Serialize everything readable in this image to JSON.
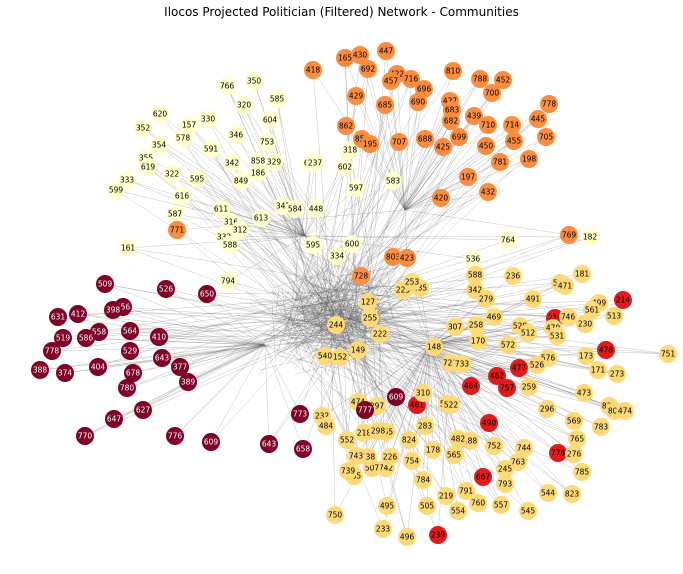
{
  "title": "Ilocos Projected Politician (Filtered) Network - Communities",
  "colors": {
    "edge": "#555555",
    "community_yellow_pale": "#ffffcc",
    "community_gold": "#fed976",
    "community_orange": "#fd8d3c",
    "community_red": "#e31a1c",
    "community_maroon": "#800026"
  },
  "nodes": [
    {
      "label": "766",
      "c": "community_yellow_pale"
    },
    {
      "label": "350",
      "c": "community_yellow_pale"
    },
    {
      "label": "585",
      "c": "community_yellow_pale"
    },
    {
      "label": "320",
      "c": "community_yellow_pale"
    },
    {
      "label": "604",
      "c": "community_yellow_pale"
    },
    {
      "label": "620",
      "c": "community_yellow_pale"
    },
    {
      "label": "157",
      "c": "community_yellow_pale"
    },
    {
      "label": "330",
      "c": "community_yellow_pale"
    },
    {
      "label": "352",
      "c": "community_yellow_pale"
    },
    {
      "label": "578",
      "c": "community_yellow_pale"
    },
    {
      "label": "346",
      "c": "community_yellow_pale"
    },
    {
      "label": "354",
      "c": "community_yellow_pale"
    },
    {
      "label": "591",
      "c": "community_yellow_pale"
    },
    {
      "label": "753",
      "c": "community_yellow_pale"
    },
    {
      "label": "355",
      "c": "community_yellow_pale"
    },
    {
      "label": "619",
      "c": "community_yellow_pale"
    },
    {
      "label": "342",
      "c": "community_yellow_pale"
    },
    {
      "label": "858",
      "c": "community_yellow_pale"
    },
    {
      "label": "329",
      "c": "community_yellow_pale"
    },
    {
      "label": "603",
      "c": "community_yellow_pale"
    },
    {
      "label": "237",
      "c": "community_yellow_pale"
    },
    {
      "label": "322",
      "c": "community_yellow_pale"
    },
    {
      "label": "186",
      "c": "community_yellow_pale"
    },
    {
      "label": "333",
      "c": "community_yellow_pale"
    },
    {
      "label": "595",
      "c": "community_yellow_pale"
    },
    {
      "label": "849",
      "c": "community_yellow_pale"
    },
    {
      "label": "599",
      "c": "community_yellow_pale"
    },
    {
      "label": "602",
      "c": "community_yellow_pale"
    },
    {
      "label": "318",
      "c": "community_yellow_pale"
    },
    {
      "label": "616",
      "c": "community_yellow_pale"
    },
    {
      "label": "611",
      "c": "community_yellow_pale"
    },
    {
      "label": "587",
      "c": "community_yellow_pale"
    },
    {
      "label": "316",
      "c": "community_yellow_pale"
    },
    {
      "label": "613",
      "c": "community_yellow_pale"
    },
    {
      "label": "312",
      "c": "community_yellow_pale"
    },
    {
      "label": "332",
      "c": "community_yellow_pale"
    },
    {
      "label": "161",
      "c": "community_yellow_pale"
    },
    {
      "label": "588",
      "c": "community_yellow_pale"
    },
    {
      "label": "764",
      "c": "community_yellow_pale"
    },
    {
      "label": "182",
      "c": "community_yellow_pale"
    },
    {
      "label": "794",
      "c": "community_yellow_pale"
    },
    {
      "label": "341",
      "c": "community_yellow_pale"
    },
    {
      "label": "584",
      "c": "community_yellow_pale"
    },
    {
      "label": "448",
      "c": "community_yellow_pale"
    },
    {
      "label": "595",
      "c": "community_yellow_pale"
    },
    {
      "label": "334",
      "c": "community_yellow_pale"
    },
    {
      "label": "600",
      "c": "community_yellow_pale"
    },
    {
      "label": "597",
      "c": "community_yellow_pale"
    },
    {
      "label": "583",
      "c": "community_yellow_pale"
    },
    {
      "label": "536",
      "c": "community_yellow_pale"
    },
    {
      "label": "418",
      "c": "community_orange"
    },
    {
      "label": "165",
      "c": "community_orange"
    },
    {
      "label": "430",
      "c": "community_orange"
    },
    {
      "label": "447",
      "c": "community_orange"
    },
    {
      "label": "692",
      "c": "community_orange"
    },
    {
      "label": "422",
      "c": "community_orange"
    },
    {
      "label": "457",
      "c": "community_orange"
    },
    {
      "label": "716",
      "c": "community_orange"
    },
    {
      "label": "696",
      "c": "community_orange"
    },
    {
      "label": "810",
      "c": "community_orange"
    },
    {
      "label": "788",
      "c": "community_orange"
    },
    {
      "label": "452",
      "c": "community_orange"
    },
    {
      "label": "429",
      "c": "community_orange"
    },
    {
      "label": "685",
      "c": "community_orange"
    },
    {
      "label": "690",
      "c": "community_orange"
    },
    {
      "label": "427",
      "c": "community_orange"
    },
    {
      "label": "683",
      "c": "community_orange"
    },
    {
      "label": "700",
      "c": "community_orange"
    },
    {
      "label": "778",
      "c": "community_orange"
    },
    {
      "label": "439",
      "c": "community_orange"
    },
    {
      "label": "682",
      "c": "community_orange"
    },
    {
      "label": "710",
      "c": "community_orange"
    },
    {
      "label": "445",
      "c": "community_orange"
    },
    {
      "label": "862",
      "c": "community_orange"
    },
    {
      "label": "714",
      "c": "community_orange"
    },
    {
      "label": "705",
      "c": "community_orange"
    },
    {
      "label": "854",
      "c": "community_orange"
    },
    {
      "label": "195",
      "c": "community_orange"
    },
    {
      "label": "707",
      "c": "community_orange"
    },
    {
      "label": "688",
      "c": "community_orange"
    },
    {
      "label": "425",
      "c": "community_orange"
    },
    {
      "label": "699",
      "c": "community_orange"
    },
    {
      "label": "450",
      "c": "community_orange"
    },
    {
      "label": "455",
      "c": "community_orange"
    },
    {
      "label": "781",
      "c": "community_orange"
    },
    {
      "label": "198",
      "c": "community_orange"
    },
    {
      "label": "197",
      "c": "community_orange"
    },
    {
      "label": "432",
      "c": "community_orange"
    },
    {
      "label": "420",
      "c": "community_orange"
    },
    {
      "label": "771",
      "c": "community_orange"
    },
    {
      "label": "769",
      "c": "community_orange"
    },
    {
      "label": "728",
      "c": "community_orange"
    },
    {
      "label": "803",
      "c": "community_orange"
    },
    {
      "label": "423",
      "c": "community_orange"
    },
    {
      "label": "214",
      "c": "community_red"
    },
    {
      "label": "478",
      "c": "community_red"
    },
    {
      "label": "477",
      "c": "community_red"
    },
    {
      "label": "213",
      "c": "community_red"
    },
    {
      "label": "464",
      "c": "community_red"
    },
    {
      "label": "667",
      "c": "community_red"
    },
    {
      "label": "239",
      "c": "community_red"
    },
    {
      "label": "461",
      "c": "community_red"
    },
    {
      "label": "490",
      "c": "community_red"
    },
    {
      "label": "776",
      "c": "community_red"
    },
    {
      "label": "462",
      "c": "community_red"
    },
    {
      "label": "757",
      "c": "community_red"
    },
    {
      "label": "181",
      "c": "community_gold"
    },
    {
      "label": "236",
      "c": "community_gold"
    },
    {
      "label": "563",
      "c": "community_gold"
    },
    {
      "label": "471",
      "c": "community_gold"
    },
    {
      "label": "499",
      "c": "community_gold"
    },
    {
      "label": "561",
      "c": "community_gold"
    },
    {
      "label": "513",
      "c": "community_gold"
    },
    {
      "label": "746",
      "c": "community_gold"
    },
    {
      "label": "470",
      "c": "community_gold"
    },
    {
      "label": "230",
      "c": "community_gold"
    },
    {
      "label": "531",
      "c": "community_gold"
    },
    {
      "label": "751",
      "c": "community_gold"
    },
    {
      "label": "173",
      "c": "community_gold"
    },
    {
      "label": "171",
      "c": "community_gold"
    },
    {
      "label": "273",
      "c": "community_gold"
    },
    {
      "label": "576",
      "c": "community_gold"
    },
    {
      "label": "526",
      "c": "community_gold"
    },
    {
      "label": "520",
      "c": "community_gold"
    },
    {
      "label": "512",
      "c": "community_gold"
    },
    {
      "label": "491",
      "c": "community_gold"
    },
    {
      "label": "473",
      "c": "community_gold"
    },
    {
      "label": "820",
      "c": "community_gold"
    },
    {
      "label": "803",
      "c": "community_gold"
    },
    {
      "label": "474",
      "c": "community_gold"
    },
    {
      "label": "569",
      "c": "community_gold"
    },
    {
      "label": "783",
      "c": "community_gold"
    },
    {
      "label": "765",
      "c": "community_gold"
    },
    {
      "label": "276",
      "c": "community_gold"
    },
    {
      "label": "785",
      "c": "community_gold"
    },
    {
      "label": "823",
      "c": "community_gold"
    },
    {
      "label": "544",
      "c": "community_gold"
    },
    {
      "label": "545",
      "c": "community_gold"
    },
    {
      "label": "557",
      "c": "community_gold"
    },
    {
      "label": "760",
      "c": "community_gold"
    },
    {
      "label": "793",
      "c": "community_gold"
    },
    {
      "label": "763",
      "c": "community_gold"
    },
    {
      "label": "245",
      "c": "community_gold"
    },
    {
      "label": "744",
      "c": "community_gold"
    },
    {
      "label": "752",
      "c": "community_gold"
    },
    {
      "label": "488",
      "c": "community_gold"
    },
    {
      "label": "296",
      "c": "community_gold"
    },
    {
      "label": "259",
      "c": "community_gold"
    },
    {
      "label": "791",
      "c": "community_gold"
    },
    {
      "label": "554",
      "c": "community_gold"
    },
    {
      "label": "219",
      "c": "community_gold"
    },
    {
      "label": "505",
      "c": "community_gold"
    },
    {
      "label": "495",
      "c": "community_gold"
    },
    {
      "label": "496",
      "c": "community_gold"
    },
    {
      "label": "233",
      "c": "community_gold"
    },
    {
      "label": "750",
      "c": "community_gold"
    },
    {
      "label": "285",
      "c": "community_gold"
    },
    {
      "label": "739",
      "c": "community_gold"
    },
    {
      "label": "742",
      "c": "community_gold"
    },
    {
      "label": "507",
      "c": "community_gold"
    },
    {
      "label": "784",
      "c": "community_gold"
    },
    {
      "label": "754",
      "c": "community_gold"
    },
    {
      "label": "178",
      "c": "community_gold"
    },
    {
      "label": "565",
      "c": "community_gold"
    },
    {
      "label": "482",
      "c": "community_gold"
    },
    {
      "label": "533",
      "c": "community_gold"
    },
    {
      "label": "522",
      "c": "community_gold"
    },
    {
      "label": "310",
      "c": "community_gold"
    },
    {
      "label": "824",
      "c": "community_gold"
    },
    {
      "label": "155",
      "c": "community_gold"
    },
    {
      "label": "283",
      "c": "community_gold"
    },
    {
      "label": "552",
      "c": "community_gold"
    },
    {
      "label": "232",
      "c": "community_gold"
    },
    {
      "label": "484",
      "c": "community_gold"
    },
    {
      "label": "218",
      "c": "community_gold"
    },
    {
      "label": "298",
      "c": "community_gold"
    },
    {
      "label": "738",
      "c": "community_gold"
    },
    {
      "label": "743",
      "c": "community_gold"
    },
    {
      "label": "226",
      "c": "community_gold"
    },
    {
      "label": "225",
      "c": "community_gold"
    },
    {
      "label": "235",
      "c": "community_gold"
    },
    {
      "label": "253",
      "c": "community_gold"
    },
    {
      "label": "469",
      "c": "community_gold"
    },
    {
      "label": "342",
      "c": "community_gold"
    },
    {
      "label": "588",
      "c": "community_gold"
    },
    {
      "label": "279",
      "c": "community_gold"
    },
    {
      "label": "307",
      "c": "community_gold"
    },
    {
      "label": "258",
      "c": "community_gold"
    },
    {
      "label": "572",
      "c": "community_gold"
    },
    {
      "label": "170",
      "c": "community_gold"
    },
    {
      "label": "148",
      "c": "community_gold"
    },
    {
      "label": "723",
      "c": "community_gold"
    },
    {
      "label": "733",
      "c": "community_gold"
    },
    {
      "label": "222",
      "c": "community_gold"
    },
    {
      "label": "149",
      "c": "community_gold"
    },
    {
      "label": "152",
      "c": "community_gold"
    },
    {
      "label": "127",
      "c": "community_gold"
    },
    {
      "label": "255",
      "c": "community_gold"
    },
    {
      "label": "540",
      "c": "community_gold"
    },
    {
      "label": "244",
      "c": "community_gold"
    },
    {
      "label": "474",
      "c": "community_gold"
    },
    {
      "label": "297",
      "c": "community_gold"
    },
    {
      "label": "609",
      "c": "community_maroon"
    },
    {
      "label": "777",
      "c": "community_maroon"
    },
    {
      "label": "509",
      "c": "community_maroon"
    },
    {
      "label": "756",
      "c": "community_maroon"
    },
    {
      "label": "398",
      "c": "community_maroon"
    },
    {
      "label": "412",
      "c": "community_maroon"
    },
    {
      "label": "631",
      "c": "community_maroon"
    },
    {
      "label": "526",
      "c": "community_maroon"
    },
    {
      "label": "650",
      "c": "community_maroon"
    },
    {
      "label": "558",
      "c": "community_maroon"
    },
    {
      "label": "519",
      "c": "community_maroon"
    },
    {
      "label": "564",
      "c": "community_maroon"
    },
    {
      "label": "778",
      "c": "community_maroon"
    },
    {
      "label": "586",
      "c": "community_maroon"
    },
    {
      "label": "410",
      "c": "community_maroon"
    },
    {
      "label": "529",
      "c": "community_maroon"
    },
    {
      "label": "678",
      "c": "community_maroon"
    },
    {
      "label": "377",
      "c": "community_maroon"
    },
    {
      "label": "388",
      "c": "community_maroon"
    },
    {
      "label": "374",
      "c": "community_maroon"
    },
    {
      "label": "404",
      "c": "community_maroon"
    },
    {
      "label": "643",
      "c": "community_maroon"
    },
    {
      "label": "780",
      "c": "community_maroon"
    },
    {
      "label": "389",
      "c": "community_maroon"
    },
    {
      "label": "647",
      "c": "community_maroon"
    },
    {
      "label": "627",
      "c": "community_maroon"
    },
    {
      "label": "770",
      "c": "community_maroon"
    },
    {
      "label": "776",
      "c": "community_maroon"
    },
    {
      "label": "609",
      "c": "community_maroon"
    },
    {
      "label": "643",
      "c": "community_maroon"
    },
    {
      "label": "773",
      "c": "community_maroon"
    },
    {
      "label": "658",
      "c": "community_maroon"
    }
  ]
}
